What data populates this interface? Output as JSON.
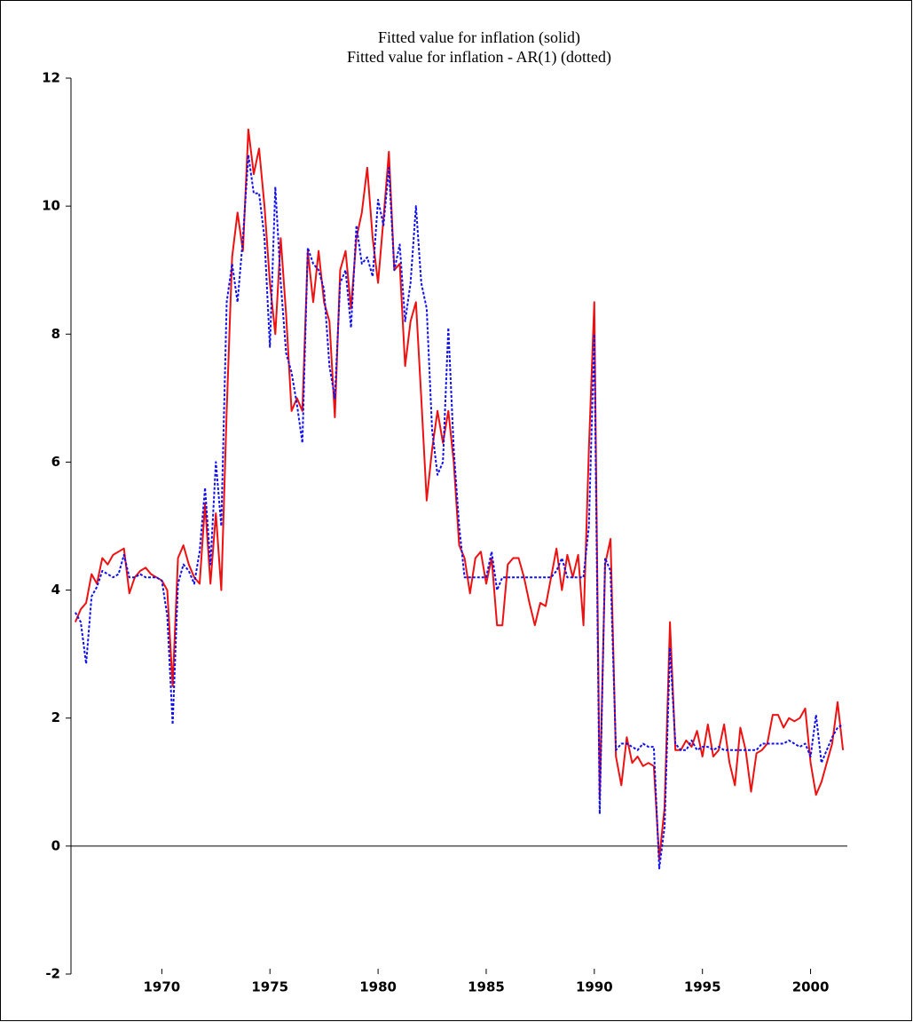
{
  "chart_data": {
    "type": "line",
    "title": "Fitted value for inflation (solid)",
    "subtitle": "Fitted value for inflation - AR(1) (dotted)",
    "x": [
      1966,
      1966.25,
      1966.5,
      1966.75,
      1967,
      1967.25,
      1967.5,
      1967.75,
      1968,
      1968.25,
      1968.5,
      1968.75,
      1969,
      1969.25,
      1969.5,
      1969.75,
      1970,
      1970.25,
      1970.5,
      1970.75,
      1971,
      1971.25,
      1971.5,
      1971.75,
      1972,
      1972.25,
      1972.5,
      1972.75,
      1973,
      1973.25,
      1973.5,
      1973.75,
      1974,
      1974.25,
      1974.5,
      1974.75,
      1975,
      1975.25,
      1975.5,
      1975.75,
      1976,
      1976.25,
      1976.5,
      1976.75,
      1977,
      1977.25,
      1977.5,
      1977.75,
      1978,
      1978.25,
      1978.5,
      1978.75,
      1979,
      1979.25,
      1979.5,
      1979.75,
      1980,
      1980.25,
      1980.5,
      1980.75,
      1981,
      1981.25,
      1981.5,
      1981.75,
      1982,
      1982.25,
      1982.5,
      1982.75,
      1983,
      1983.25,
      1983.5,
      1983.75,
      1984,
      1984.25,
      1984.5,
      1984.75,
      1985,
      1985.25,
      1985.5,
      1985.75,
      1986,
      1986.25,
      1986.5,
      1986.75,
      1987,
      1987.25,
      1987.5,
      1987.75,
      1988,
      1988.25,
      1988.5,
      1988.75,
      1989,
      1989.25,
      1989.5,
      1989.75,
      1990,
      1990.25,
      1990.5,
      1990.75,
      1991,
      1991.25,
      1991.5,
      1991.75,
      1992,
      1992.25,
      1992.5,
      1992.75,
      1993,
      1993.25,
      1993.5,
      1993.75,
      1994,
      1994.25,
      1994.5,
      1994.75,
      1995,
      1995.25,
      1995.5,
      1995.75,
      1996,
      1996.25,
      1996.5,
      1996.75,
      1997,
      1997.25,
      1997.5,
      1997.75,
      1998,
      1998.25,
      1998.5,
      1998.75,
      1999,
      1999.25,
      1999.5,
      1999.75,
      2000,
      2000.25,
      2000.5,
      2000.75,
      2001,
      2001.25,
      2001.5
    ],
    "series": [
      {
        "color": "#ee1111",
        "style": "solid",
        "values": [
          3.5,
          3.7,
          3.8,
          4.25,
          4.1,
          4.5,
          4.4,
          4.55,
          4.6,
          4.65,
          3.95,
          4.2,
          4.3,
          4.35,
          4.25,
          4.2,
          4.15,
          4.0,
          2.5,
          4.5,
          4.7,
          4.4,
          4.2,
          4.1,
          5.35,
          4.1,
          5.2,
          4.0,
          6.8,
          9.2,
          9.9,
          9.3,
          11.2,
          10.5,
          10.9,
          10.0,
          8.8,
          8.0,
          9.5,
          8.3,
          6.8,
          7.0,
          6.8,
          9.3,
          8.5,
          9.3,
          8.5,
          8.2,
          6.7,
          9.0,
          9.3,
          8.4,
          9.5,
          9.9,
          10.6,
          9.5,
          8.8,
          9.8,
          10.85,
          9.0,
          9.1,
          7.5,
          8.2,
          8.5,
          7.0,
          5.4,
          6.2,
          6.8,
          6.3,
          6.8,
          6.0,
          4.7,
          4.5,
          3.95,
          4.5,
          4.6,
          4.1,
          4.5,
          3.45,
          3.45,
          4.4,
          4.5,
          4.5,
          4.2,
          3.8,
          3.45,
          3.8,
          3.75,
          4.2,
          4.65,
          4.0,
          4.55,
          4.2,
          4.55,
          3.45,
          6.2,
          8.5,
          0.75,
          4.4,
          4.8,
          1.4,
          0.95,
          1.7,
          1.3,
          1.4,
          1.25,
          1.3,
          1.25,
          -0.2,
          0.6,
          3.5,
          1.5,
          1.5,
          1.65,
          1.55,
          1.8,
          1.4,
          1.9,
          1.4,
          1.5,
          1.9,
          1.3,
          0.95,
          1.85,
          1.5,
          0.85,
          1.45,
          1.5,
          1.6,
          2.05,
          2.05,
          1.85,
          2.0,
          1.95,
          2.0,
          2.15,
          1.3,
          0.8,
          1.0,
          1.3,
          1.6,
          2.25,
          1.5
        ]
      },
      {
        "color": "#1111ee",
        "style": "dotted",
        "values": [
          3.65,
          3.5,
          2.85,
          3.9,
          4.05,
          4.3,
          4.25,
          4.2,
          4.25,
          4.55,
          4.2,
          4.2,
          4.25,
          4.2,
          4.2,
          4.2,
          4.15,
          3.6,
          1.9,
          4.1,
          4.4,
          4.3,
          4.1,
          4.6,
          5.6,
          4.4,
          6.0,
          5.0,
          8.5,
          9.1,
          8.5,
          9.5,
          10.8,
          10.2,
          10.2,
          9.5,
          7.8,
          10.3,
          8.8,
          7.7,
          7.4,
          6.9,
          6.3,
          9.35,
          9.1,
          9.0,
          8.7,
          7.5,
          7.0,
          8.8,
          9.0,
          8.1,
          9.7,
          9.1,
          9.2,
          8.9,
          10.1,
          9.7,
          10.6,
          9.0,
          9.4,
          8.2,
          8.8,
          10.0,
          8.8,
          8.4,
          6.5,
          5.8,
          6.0,
          8.1,
          6.2,
          5.0,
          4.2,
          4.2,
          4.2,
          4.2,
          4.2,
          4.6,
          4.0,
          4.2,
          4.2,
          4.2,
          4.2,
          4.2,
          4.2,
          4.2,
          4.2,
          4.2,
          4.2,
          4.3,
          4.5,
          4.2,
          4.2,
          4.2,
          4.2,
          5.0,
          8.0,
          0.5,
          4.5,
          4.3,
          1.5,
          1.6,
          1.6,
          1.55,
          1.5,
          1.6,
          1.55,
          1.55,
          -0.35,
          0.3,
          3.1,
          1.6,
          1.5,
          1.5,
          1.65,
          1.5,
          1.55,
          1.55,
          1.5,
          1.55,
          1.5,
          1.5,
          1.5,
          1.5,
          1.5,
          1.5,
          1.5,
          1.6,
          1.6,
          1.6,
          1.6,
          1.6,
          1.65,
          1.6,
          1.55,
          1.6,
          1.4,
          2.05,
          1.3,
          1.5,
          1.7,
          1.85,
          1.9
        ]
      }
    ],
    "xlim": [
      1965.8,
      2001.7
    ],
    "xticks": [
      1970,
      1975,
      1980,
      1985,
      1990,
      1995,
      2000
    ],
    "ylim": [
      -2,
      12
    ],
    "yticks": [
      -2,
      0,
      2,
      4,
      6,
      8,
      10,
      12
    ],
    "zero_line": true
  }
}
